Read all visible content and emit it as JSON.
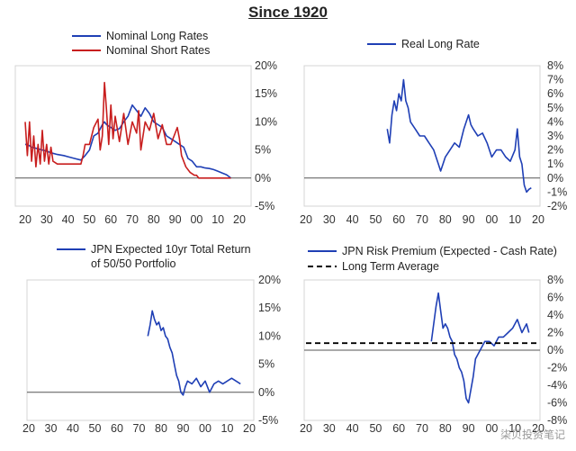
{
  "page": {
    "title": "Since 1920"
  },
  "watermark": "柒贝投资笔记",
  "chart_data": [
    {
      "type": "line",
      "x_tick_labels": [
        "20",
        "30",
        "40",
        "50",
        "60",
        "70",
        "80",
        "90",
        "00",
        "10",
        "20"
      ],
      "y_tick_labels": [
        "20%",
        "15%",
        "10%",
        "5%",
        "0%",
        "-5%"
      ],
      "xlim": [
        1920,
        2020
      ],
      "ylim": [
        -5,
        20
      ],
      "series": [
        {
          "name": "Nominal Long Rates",
          "color": "#1f3fb5",
          "x": [
            1920,
            1921,
            1923,
            1925,
            1928,
            1930,
            1932,
            1935,
            1938,
            1940,
            1943,
            1946,
            1948,
            1950,
            1952,
            1954,
            1956,
            1957,
            1958,
            1960,
            1962,
            1964,
            1966,
            1968,
            1970,
            1972,
            1974,
            1976,
            1978,
            1980,
            1982,
            1984,
            1986,
            1988,
            1990,
            1992,
            1994,
            1996,
            1998,
            2000,
            2002,
            2004,
            2006,
            2008,
            2010,
            2012,
            2014,
            2016
          ],
          "y": [
            6,
            6,
            5.5,
            5.3,
            5,
            4.8,
            4.5,
            4.2,
            4,
            3.8,
            3.5,
            3.2,
            4,
            5,
            7.5,
            8,
            9.5,
            10,
            9.5,
            9,
            8.5,
            8.8,
            10,
            11,
            13,
            12,
            11,
            12.5,
            11.5,
            10,
            9.5,
            9,
            7.5,
            7,
            6.5,
            6,
            5.5,
            3.5,
            3,
            2,
            2,
            1.8,
            1.7,
            1.5,
            1.2,
            0.9,
            0.6,
            0
          ]
        },
        {
          "name": "Nominal Short Rates",
          "color": "#c81e1e",
          "x": [
            1920,
            1921,
            1922,
            1923,
            1924,
            1925,
            1926,
            1927,
            1928,
            1929,
            1930,
            1931,
            1932,
            1933,
            1935,
            1937,
            1940,
            1943,
            1945,
            1946,
            1947,
            1948,
            1950,
            1952,
            1954,
            1955,
            1956,
            1957,
            1958,
            1959,
            1960,
            1961,
            1962,
            1964,
            1966,
            1968,
            1970,
            1972,
            1973,
            1974,
            1976,
            1978,
            1980,
            1982,
            1984,
            1986,
            1988,
            1990,
            1991,
            1992,
            1993,
            1995,
            1997,
            1999,
            2000,
            2001,
            2005,
            2010,
            2015,
            2016
          ],
          "y": [
            10,
            4,
            10,
            3,
            7.5,
            2,
            6,
            2.5,
            8.5,
            3,
            6,
            2.5,
            5.5,
            3,
            2.5,
            2.5,
            2.5,
            2.5,
            2.5,
            2.5,
            4,
            6,
            6,
            9,
            10.5,
            5,
            7.5,
            17,
            12,
            6,
            13,
            7,
            11,
            6.5,
            11.5,
            6,
            10,
            8,
            12,
            5,
            10,
            8.5,
            11.5,
            7,
            9.5,
            6,
            6,
            8,
            9,
            7,
            4,
            2,
            1,
            0.5,
            0.5,
            0,
            0,
            0,
            0,
            0
          ]
        }
      ]
    },
    {
      "type": "line",
      "x_tick_labels": [
        "20",
        "30",
        "40",
        "50",
        "60",
        "70",
        "80",
        "90",
        "00",
        "10",
        "20"
      ],
      "y_tick_labels": [
        "8%",
        "7%",
        "6%",
        "5%",
        "4%",
        "3%",
        "2%",
        "1%",
        "0%",
        "-1%",
        "-2%"
      ],
      "xlim": [
        1920,
        2020
      ],
      "ylim": [
        -2,
        8
      ],
      "series": [
        {
          "name": "Real Long Rate",
          "color": "#1f3fb5",
          "x": [
            1955,
            1956,
            1957,
            1958,
            1959,
            1960,
            1961,
            1962,
            1963,
            1964,
            1965,
            1967,
            1969,
            1971,
            1973,
            1975,
            1977,
            1978,
            1979,
            1980,
            1982,
            1984,
            1986,
            1988,
            1989,
            1990,
            1991,
            1992,
            1994,
            1996,
            1998,
            2000,
            2002,
            2004,
            2006,
            2008,
            2010,
            2011,
            2012,
            2013,
            2014,
            2015,
            2016,
            2017
          ],
          "y": [
            3.5,
            2.5,
            4.5,
            5.5,
            4.8,
            6,
            5.5,
            7,
            5.5,
            5,
            4,
            3.5,
            3,
            3,
            2.5,
            2,
            1,
            0.5,
            1,
            1.5,
            2,
            2.5,
            2.2,
            3.5,
            4,
            4.5,
            3.8,
            3.5,
            3,
            3.2,
            2.5,
            1.5,
            2,
            2,
            1.5,
            1.2,
            2,
            3.5,
            1.5,
            1,
            -0.5,
            -1,
            -0.8,
            -0.7
          ]
        }
      ]
    },
    {
      "type": "line",
      "x_tick_labels": [
        "20",
        "30",
        "40",
        "50",
        "60",
        "70",
        "80",
        "90",
        "00",
        "10",
        "20"
      ],
      "y_tick_labels": [
        "20%",
        "15%",
        "10%",
        "5%",
        "0%",
        "-5%"
      ],
      "xlim": [
        1920,
        2020
      ],
      "ylim": [
        -5,
        20
      ],
      "series": [
        {
          "name": "JPN Expected 10yr Total Return of 50/50 Portfolio",
          "color": "#1f3fb5",
          "x": [
            1974,
            1975,
            1976,
            1977,
            1978,
            1979,
            1980,
            1981,
            1982,
            1983,
            1984,
            1985,
            1986,
            1987,
            1988,
            1989,
            1990,
            1991,
            1992,
            1994,
            1996,
            1998,
            2000,
            2002,
            2004,
            2006,
            2008,
            2010,
            2012,
            2014,
            2016
          ],
          "y": [
            10,
            12,
            14.5,
            13,
            12,
            12.5,
            11,
            11.5,
            10,
            9.5,
            8,
            7,
            5,
            3,
            2,
            0,
            -0.5,
            1,
            2,
            1.5,
            2.5,
            1,
            2,
            0,
            1.5,
            2,
            1.5,
            2,
            2.5,
            2,
            1.5
          ]
        }
      ],
      "legend_lines": [
        "JPN Expected 10yr Total Return",
        "of 50/50 Portfolio"
      ]
    },
    {
      "type": "line",
      "x_tick_labels": [
        "20",
        "30",
        "40",
        "50",
        "60",
        "70",
        "80",
        "90",
        "00",
        "10",
        "20"
      ],
      "y_tick_labels": [
        "8%",
        "6%",
        "4%",
        "2%",
        "0%",
        "-2%",
        "-4%",
        "-6%",
        "-8%"
      ],
      "xlim": [
        1920,
        2020
      ],
      "ylim": [
        -8,
        8
      ],
      "series": [
        {
          "name": "JPN Risk Premium (Expected - Cash Rate)",
          "color": "#1f3fb5",
          "x": [
            1974,
            1975,
            1976,
            1977,
            1978,
            1979,
            1980,
            1981,
            1982,
            1983,
            1984,
            1985,
            1986,
            1987,
            1988,
            1989,
            1990,
            1991,
            1992,
            1993,
            1995,
            1997,
            1999,
            2001,
            2003,
            2005,
            2007,
            2009,
            2011,
            2013,
            2015,
            2016
          ],
          "y": [
            1,
            3,
            5,
            6.5,
            4.5,
            2.5,
            3,
            2.5,
            1.5,
            1,
            -0.5,
            -1,
            -2,
            -2.5,
            -3.5,
            -5.5,
            -6,
            -4.5,
            -3,
            -1,
            0,
            1,
            1,
            0.5,
            1.5,
            1.5,
            2,
            2.5,
            3.5,
            2,
            3,
            2
          ]
        },
        {
          "name": "Long Term Average",
          "color": "#000000",
          "style": "dashed",
          "x": [
            1920,
            2020
          ],
          "y": [
            0.8,
            0.8
          ]
        }
      ]
    }
  ],
  "colors": {
    "blue": "#1f3fb5",
    "red": "#c81e1e"
  }
}
